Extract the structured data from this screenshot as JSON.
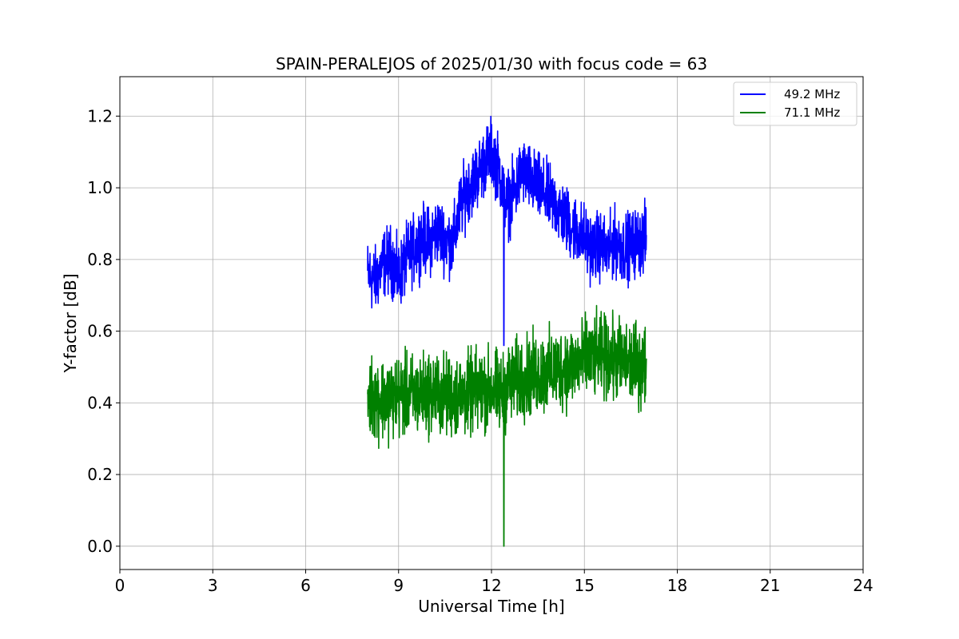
{
  "chart_data": {
    "type": "line",
    "title": "SPAIN-PERALEJOS of 2025/01/30 with focus code = 63",
    "xlabel": "Universal Time [h]",
    "ylabel": "Y-factor [dB]",
    "xlim": [
      0,
      24
    ],
    "ylim": [
      -0.065,
      1.31
    ],
    "xticks": [
      0,
      3,
      6,
      9,
      12,
      15,
      18,
      21,
      24
    ],
    "xtick_labels": [
      "0",
      "3",
      "6",
      "9",
      "12",
      "15",
      "18",
      "21",
      "24"
    ],
    "yticks": [
      0.0,
      0.2,
      0.4,
      0.6,
      0.8,
      1.0,
      1.2
    ],
    "ytick_labels": [
      "0.0",
      "0.2",
      "0.4",
      "0.6",
      "0.8",
      "1.0",
      "1.2"
    ],
    "grid": true,
    "legend_position": "top-right",
    "series": [
      {
        "name": "49.2 MHz",
        "color": "#0000ff",
        "x": [
          8.0,
          8.25,
          8.5,
          8.75,
          9.0,
          9.25,
          9.5,
          9.75,
          10.0,
          10.25,
          10.5,
          10.75,
          11.0,
          11.25,
          11.5,
          11.75,
          12.0,
          12.25,
          12.4,
          12.5,
          12.75,
          13.0,
          13.25,
          13.5,
          13.75,
          14.0,
          14.25,
          14.5,
          14.75,
          15.0,
          15.25,
          15.5,
          15.75,
          16.0,
          16.25,
          16.5,
          16.75,
          17.0
        ],
        "y": [
          0.76,
          0.74,
          0.79,
          0.8,
          0.75,
          0.8,
          0.83,
          0.86,
          0.85,
          0.88,
          0.86,
          0.84,
          0.95,
          1.0,
          1.03,
          1.07,
          1.1,
          1.05,
          0.98,
          0.95,
          0.99,
          1.05,
          1.02,
          1.0,
          0.98,
          0.96,
          0.93,
          0.9,
          0.88,
          0.86,
          0.83,
          0.84,
          0.82,
          0.85,
          0.83,
          0.84,
          0.85,
          0.86
        ],
        "spread": 0.07,
        "min_spike": {
          "x": 12.4,
          "y": 0.56
        }
      },
      {
        "name": "71.1 MHz",
        "color": "#008000",
        "x": [
          8.0,
          8.5,
          9.0,
          9.5,
          10.0,
          10.5,
          11.0,
          11.5,
          12.0,
          12.4,
          12.5,
          13.0,
          13.5,
          14.0,
          14.5,
          15.0,
          15.5,
          16.0,
          16.5,
          17.0
        ],
        "y": [
          0.42,
          0.41,
          0.42,
          0.42,
          0.43,
          0.42,
          0.42,
          0.43,
          0.44,
          0.42,
          0.45,
          0.47,
          0.48,
          0.49,
          0.5,
          0.52,
          0.53,
          0.52,
          0.51,
          0.5
        ],
        "spread": 0.085,
        "min_spike": {
          "x": 12.4,
          "y": 0.0
        }
      }
    ]
  }
}
